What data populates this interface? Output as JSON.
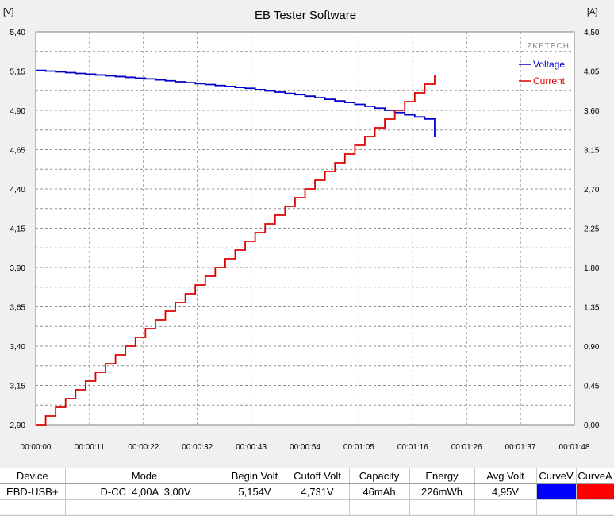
{
  "app": {
    "title": "EB Tester Software",
    "brand": "ZKETECH"
  },
  "chart_data": {
    "type": "line",
    "title": "EB Tester Software",
    "left_unit": "[V]",
    "right_unit": "[A]",
    "x_ticks": [
      "00:00:00",
      "00:00:11",
      "00:00:22",
      "00:00:32",
      "00:00:43",
      "00:00:54",
      "00:01:05",
      "00:01:16",
      "00:01:26",
      "00:01:37",
      "00:01:48"
    ],
    "xlim_seconds": [
      0,
      108
    ],
    "y_left": {
      "min": 2.9,
      "max": 5.4,
      "ticks": [
        "2,90",
        "3,15",
        "3,40",
        "3,65",
        "3,90",
        "4,15",
        "4,40",
        "4,65",
        "4,90",
        "5,15",
        "5,40"
      ]
    },
    "y_right": {
      "min": 0.0,
      "max": 4.5,
      "ticks": [
        "0,00",
        "0,45",
        "0,90",
        "1,35",
        "1,80",
        "2,25",
        "2,70",
        "3,15",
        "3,60",
        "4,05",
        "4,50"
      ]
    },
    "grid": true,
    "legend": "top-right",
    "series": [
      {
        "name": "Voltage",
        "color": "#0000cc",
        "axis": "left",
        "x": [
          0,
          2,
          4,
          6,
          8,
          10,
          12,
          14,
          16,
          18,
          20,
          22,
          24,
          26,
          28,
          30,
          32,
          34,
          36,
          38,
          40,
          42,
          44,
          46,
          48,
          50,
          52,
          54,
          56,
          58,
          60,
          62,
          64,
          66,
          68,
          70,
          72,
          74,
          76,
          78,
          80
        ],
        "y": [
          5.154,
          5.15,
          5.145,
          5.14,
          5.135,
          5.13,
          5.125,
          5.12,
          5.115,
          5.11,
          5.105,
          5.1,
          5.094,
          5.088,
          5.082,
          5.076,
          5.07,
          5.064,
          5.058,
          5.052,
          5.046,
          5.04,
          5.032,
          5.024,
          5.016,
          5.008,
          5.0,
          4.99,
          4.98,
          4.97,
          4.96,
          4.95,
          4.938,
          4.926,
          4.914,
          4.9,
          4.886,
          4.872,
          4.858,
          4.845,
          4.731
        ]
      },
      {
        "name": "Current",
        "color": "#dd0000",
        "axis": "right",
        "x": [
          0,
          2,
          4,
          6,
          8,
          10,
          12,
          14,
          16,
          18,
          20,
          22,
          24,
          26,
          28,
          30,
          32,
          34,
          36,
          38,
          40,
          42,
          44,
          46,
          48,
          50,
          52,
          54,
          56,
          58,
          60,
          62,
          64,
          66,
          68,
          70,
          72,
          74,
          76,
          78,
          80
        ],
        "y": [
          0.0,
          0.1,
          0.2,
          0.3,
          0.4,
          0.5,
          0.6,
          0.7,
          0.8,
          0.9,
          1.0,
          1.1,
          1.2,
          1.3,
          1.4,
          1.5,
          1.6,
          1.7,
          1.8,
          1.9,
          2.0,
          2.1,
          2.2,
          2.3,
          2.4,
          2.5,
          2.6,
          2.7,
          2.8,
          2.9,
          3.0,
          3.1,
          3.2,
          3.3,
          3.4,
          3.5,
          3.6,
          3.7,
          3.8,
          3.9,
          4.0
        ]
      }
    ]
  },
  "table": {
    "headers": [
      "Device",
      "Mode",
      "Begin Volt",
      "Cutoff Volt",
      "Capacity",
      "Energy",
      "Avg Volt",
      "CurveV",
      "CurveA"
    ],
    "row": [
      "EBD-USB+",
      "D-CC  4,00A  3,00V",
      "5,154V",
      "4,731V",
      "46mAh",
      "226mWh",
      "4,95V"
    ],
    "curve_colors": {
      "v": "#0000ff",
      "a": "#ff0000"
    }
  }
}
